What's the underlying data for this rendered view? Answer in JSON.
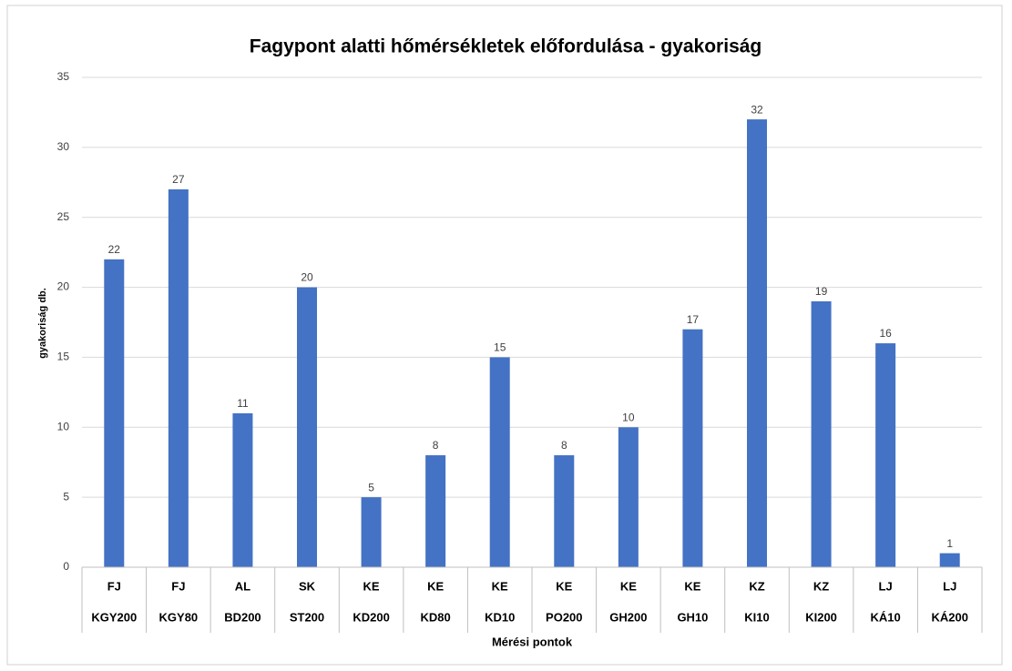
{
  "chart_data": {
    "type": "bar",
    "title": "Fagypont alatti hőmérsékletek előfordulása - gyakoriság",
    "y_label": "gyakoriság db.",
    "x_label": "Mérési pontok",
    "category_groups": [
      "FJ",
      "FJ",
      "AL",
      "SK",
      "KE",
      "KE",
      "KE",
      "KE",
      "KE",
      "KE",
      "KZ",
      "KZ",
      "LJ",
      "LJ"
    ],
    "categories": [
      "KGY200",
      "KGY80",
      "BD200",
      "ST200",
      "KD200",
      "KD80",
      "KD10",
      "PO200",
      "GH200",
      "GH10",
      "KI10",
      "KI200",
      "KÁ10",
      "KÁ200"
    ],
    "values": [
      22,
      27,
      11,
      20,
      5,
      8,
      15,
      8,
      10,
      17,
      32,
      19,
      16,
      1
    ],
    "color": "#4472c4",
    "ylim": [
      0,
      35
    ],
    "yticks": [
      0,
      5,
      10,
      15,
      20,
      25,
      30,
      35
    ],
    "grid": true
  }
}
